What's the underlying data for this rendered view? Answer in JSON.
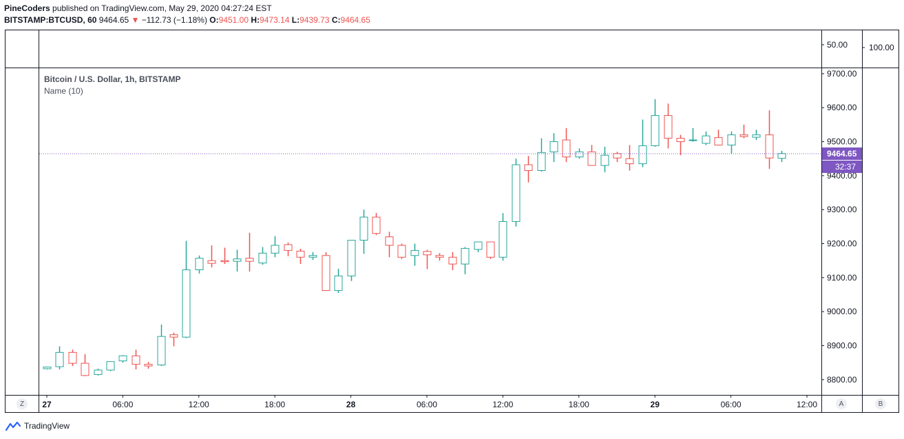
{
  "header": {
    "author": "PineCoders",
    "published": "published on TradingView.com, May 29, 2020 04:27:24 EST",
    "symbol": "BITSTAMP:BTCUSD, 60",
    "last": "9464.65",
    "change": "−112.73 (−1.18%)",
    "o_label": "O:",
    "o": "9451.00",
    "h_label": "H:",
    "h": "9473.14",
    "l_label": "L:",
    "l": "9439.73",
    "c_label": "C:",
    "c": "9464.65"
  },
  "legend": {
    "series": "Bitcoin / U.S. Dollar, 1h, BITSTAMP",
    "indicator": "Name (10)"
  },
  "price_badge": "9464.65",
  "countdown_badge": "32:37",
  "buttons": {
    "zoom": "Z",
    "auto": "A",
    "base": "B"
  },
  "footer": {
    "brand": "TradingView"
  },
  "colors": {
    "up": "#26a69a",
    "down": "#ef5350",
    "price_line": "#7e57c2",
    "badge": "#7e57c2"
  },
  "chart_data": {
    "type": "candlestick",
    "price_axis": {
      "ylim": [
        8755,
        9716
      ],
      "ticks": [
        8800,
        8900,
        9000,
        9100,
        9200,
        9300,
        9400,
        9500,
        9600,
        9700
      ],
      "tick_labels": [
        "8800.00",
        "8900.00",
        "9000.00",
        "9100.00",
        "9200.00",
        "9300.00",
        "9400.00",
        "9500.00",
        "9600.00",
        "9700.00"
      ]
    },
    "indicator_axis": {
      "ticks": [
        50,
        100
      ],
      "tick_labels": [
        "50.00",
        "100.00"
      ]
    },
    "time_axis": {
      "labels": [
        "27",
        "06:00",
        "12:00",
        "18:00",
        "28",
        "06:00",
        "12:00",
        "18:00",
        "29",
        "06:00",
        "12:00"
      ],
      "bold": [
        true,
        false,
        false,
        false,
        true,
        false,
        false,
        false,
        true,
        false,
        false
      ],
      "bar_index": [
        0,
        6,
        12,
        18,
        24,
        30,
        36,
        42,
        48,
        54,
        60
      ]
    },
    "last_price": 9464.65,
    "ohlc": [
      [
        8832,
        8838,
        8830,
        8837
      ],
      [
        8838,
        8898,
        8830,
        8880
      ],
      [
        8880,
        8888,
        8840,
        8848
      ],
      [
        8848,
        8875,
        8810,
        8812
      ],
      [
        8815,
        8832,
        8812,
        8828
      ],
      [
        8828,
        8850,
        8825,
        8853
      ],
      [
        8855,
        8872,
        8850,
        8870
      ],
      [
        8870,
        8888,
        8830,
        8845
      ],
      [
        8845,
        8852,
        8832,
        8840
      ],
      [
        8843,
        8962,
        8840,
        8927
      ],
      [
        8932,
        8938,
        8898,
        8925
      ],
      [
        8925,
        9208,
        8922,
        9123
      ],
      [
        9123,
        9165,
        9112,
        9157
      ],
      [
        9150,
        9195,
        9130,
        9142
      ],
      [
        9150,
        9188,
        9140,
        9147
      ],
      [
        9148,
        9182,
        9118,
        9155
      ],
      [
        9157,
        9232,
        9118,
        9148
      ],
      [
        9143,
        9190,
        9138,
        9172
      ],
      [
        9172,
        9222,
        9160,
        9195
      ],
      [
        9197,
        9203,
        9163,
        9180
      ],
      [
        9178,
        9185,
        9140,
        9160
      ],
      [
        9160,
        9175,
        9152,
        9165
      ],
      [
        9165,
        9175,
        9062,
        9062
      ],
      [
        9062,
        9126,
        9055,
        9105
      ],
      [
        9105,
        9210,
        9090,
        9210
      ],
      [
        9210,
        9300,
        9170,
        9278
      ],
      [
        9278,
        9290,
        9225,
        9230
      ],
      [
        9220,
        9235,
        9160,
        9195
      ],
      [
        9195,
        9200,
        9155,
        9160
      ],
      [
        9165,
        9200,
        9135,
        9180
      ],
      [
        9177,
        9182,
        9125,
        9167
      ],
      [
        9165,
        9172,
        9150,
        9160
      ],
      [
        9160,
        9175,
        9122,
        9140
      ],
      [
        9140,
        9190,
        9110,
        9186
      ],
      [
        9183,
        9205,
        9175,
        9205
      ],
      [
        9205,
        9205,
        9155,
        9160
      ],
      [
        9160,
        9290,
        9150,
        9265
      ],
      [
        9265,
        9450,
        9250,
        9432
      ],
      [
        9432,
        9458,
        9380,
        9415
      ],
      [
        9415,
        9510,
        9412,
        9468
      ],
      [
        9470,
        9525,
        9440,
        9500
      ],
      [
        9505,
        9540,
        9440,
        9455
      ],
      [
        9455,
        9480,
        9450,
        9470
      ],
      [
        9470,
        9490,
        9430,
        9430
      ],
      [
        9430,
        9485,
        9410,
        9460
      ],
      [
        9465,
        9470,
        9440,
        9452
      ],
      [
        9450,
        9490,
        9415,
        9435
      ],
      [
        9435,
        9565,
        9425,
        9488
      ],
      [
        9488,
        9625,
        9485,
        9577
      ],
      [
        9577,
        9612,
        9480,
        9510
      ],
      [
        9510,
        9520,
        9460,
        9500
      ],
      [
        9505,
        9540,
        9500,
        9505
      ],
      [
        9495,
        9530,
        9490,
        9517
      ],
      [
        9512,
        9535,
        9495,
        9490
      ],
      [
        9490,
        9530,
        9465,
        9520
      ],
      [
        9520,
        9550,
        9510,
        9515
      ],
      [
        9513,
        9535,
        9505,
        9520
      ],
      [
        9520,
        9592,
        9420,
        9452
      ],
      [
        9451,
        9473,
        9440,
        9465
      ]
    ]
  }
}
